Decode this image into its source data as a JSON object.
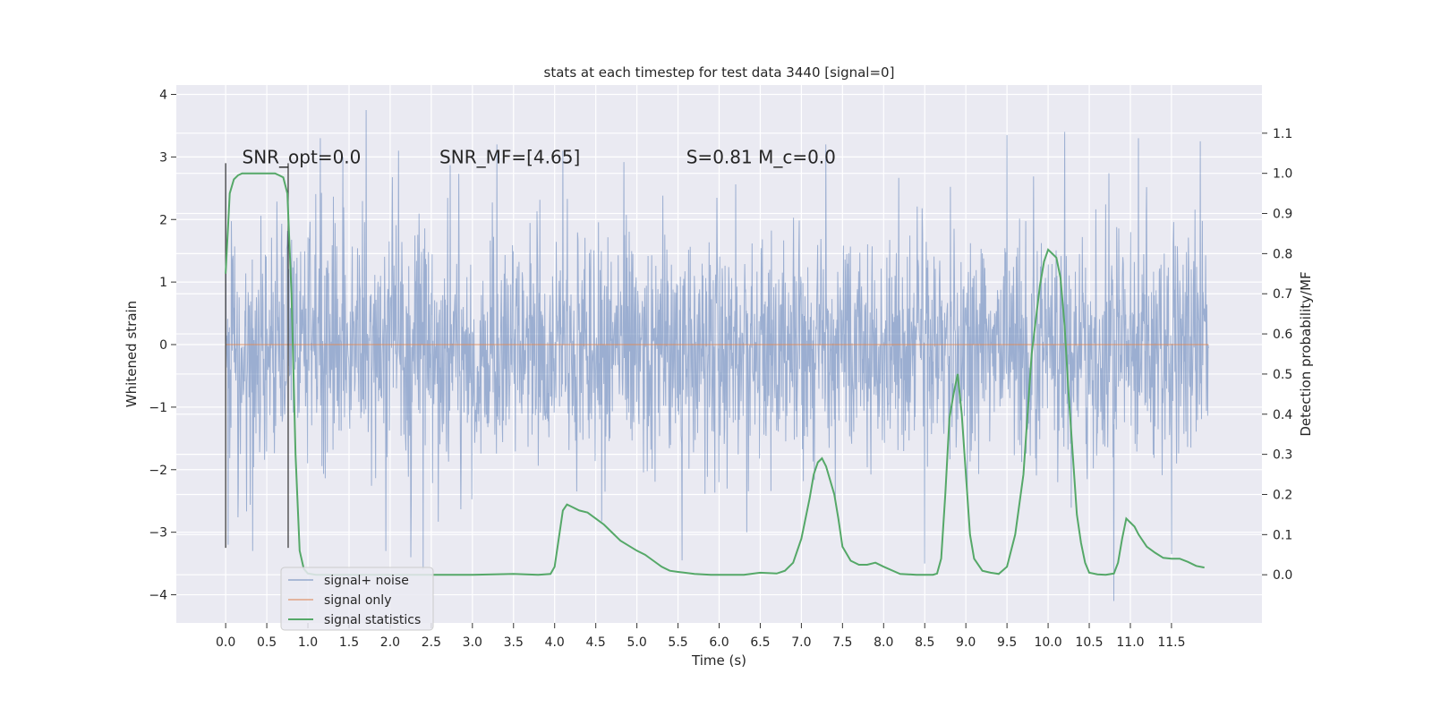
{
  "chart_data": {
    "type": "line",
    "title": "stats at each timestep for test data 3440 [signal=0]",
    "xlabel": "Time (s)",
    "ylabel": "Whitened strain",
    "y2label": "Detection probability/MF",
    "xlim": [
      -0.6,
      12.6
    ],
    "ylim": [
      -4.45,
      4.15
    ],
    "y2lim": [
      -0.12,
      1.22
    ],
    "grid": true,
    "legend_position": "lower left",
    "x_ticks": [
      "0.0",
      "0.5",
      "1.0",
      "1.5",
      "2.0",
      "2.5",
      "3.0",
      "3.5",
      "4.0",
      "4.5",
      "5.0",
      "5.5",
      "6.0",
      "6.5",
      "7.0",
      "7.5",
      "8.0",
      "8.5",
      "9.0",
      "9.5",
      "10.0",
      "10.5",
      "11.0",
      "11.5"
    ],
    "x_tick_values": [
      0,
      0.5,
      1,
      1.5,
      2,
      2.5,
      3,
      3.5,
      4,
      4.5,
      5,
      5.5,
      6,
      6.5,
      7,
      7.5,
      8,
      8.5,
      9,
      9.5,
      10,
      10.5,
      11,
      11.5
    ],
    "y_ticks": [
      "−4",
      "−3",
      "−2",
      "−1",
      "0",
      "1",
      "2",
      "3",
      "4"
    ],
    "y_tick_values": [
      -4,
      -3,
      -2,
      -1,
      0,
      1,
      2,
      3,
      4
    ],
    "y2_ticks": [
      "0.0",
      "0.1",
      "0.2",
      "0.3",
      "0.4",
      "0.5",
      "0.6",
      "0.7",
      "0.8",
      "0.9",
      "1.0",
      "1.1"
    ],
    "y2_tick_values": [
      0,
      0.1,
      0.2,
      0.3,
      0.4,
      0.5,
      0.6,
      0.7,
      0.8,
      0.9,
      1.0,
      1.1
    ],
    "annotations": [
      {
        "text": "SNR_opt=0.0",
        "x": 0.2,
        "y": 3.0
      },
      {
        "text": "SNR_MF=[4.65]",
        "x": 2.6,
        "y": 3.0
      },
      {
        "text": "S=0.81   M_c=0.0",
        "x": 5.6,
        "y": 3.0
      }
    ],
    "markers": [
      {
        "name": "window-start",
        "x": 0.0,
        "ymin": -3.25,
        "ymax": 2.9
      },
      {
        "name": "window-end",
        "x": 0.76,
        "ymin": -3.25,
        "ymax": 2.9
      }
    ],
    "series": [
      {
        "name": "signal+ noise",
        "color": "#4c72b0",
        "x_range": [
          0,
          11.95
        ],
        "typical_amplitude": 1.7,
        "peak_samples": [
          {
            "x": 0.0,
            "y": 2.9
          },
          {
            "x": 0.03,
            "y": -3.2
          },
          {
            "x": 0.33,
            "y": -3.3
          },
          {
            "x": 1.15,
            "y": 3.3
          },
          {
            "x": 1.71,
            "y": 3.75
          },
          {
            "x": 1.95,
            "y": -3.3
          },
          {
            "x": 2.1,
            "y": 3.1
          },
          {
            "x": 2.25,
            "y": -3.4
          },
          {
            "x": 2.4,
            "y": -3.6
          },
          {
            "x": 3.3,
            "y": 3.2
          },
          {
            "x": 4.1,
            "y": 3.1
          },
          {
            "x": 5.55,
            "y": -3.45
          },
          {
            "x": 7.3,
            "y": 3.2
          },
          {
            "x": 8.5,
            "y": -3.5
          },
          {
            "x": 9.5,
            "y": 3.35
          },
          {
            "x": 10.2,
            "y": 3.4
          },
          {
            "x": 10.8,
            "y": -4.1
          },
          {
            "x": 11.1,
            "y": 3.3
          },
          {
            "x": 11.5,
            "y": -3.35
          },
          {
            "x": 11.85,
            "y": 3.25
          }
        ]
      },
      {
        "name": "signal only",
        "color": "#dd8452",
        "x": [
          0,
          11.95
        ],
        "y": [
          0,
          0
        ]
      },
      {
        "name": "signal statistics",
        "color": "#55a868",
        "axis": "right",
        "x": [
          0,
          0.05,
          0.1,
          0.15,
          0.2,
          0.3,
          0.4,
          0.5,
          0.6,
          0.65,
          0.7,
          0.75,
          0.8,
          0.85,
          0.9,
          0.95,
          1.0,
          1.1,
          1.3,
          1.5,
          2.0,
          2.5,
          3.0,
          3.5,
          3.8,
          3.95,
          4.0,
          4.05,
          4.1,
          4.15,
          4.2,
          4.3,
          4.4,
          4.5,
          4.6,
          4.7,
          4.8,
          5.0,
          5.1,
          5.2,
          5.3,
          5.4,
          5.5,
          5.7,
          5.9,
          6.1,
          6.3,
          6.5,
          6.7,
          6.8,
          6.9,
          7.0,
          7.1,
          7.15,
          7.2,
          7.25,
          7.3,
          7.4,
          7.45,
          7.5,
          7.6,
          7.7,
          7.8,
          7.9,
          8.0,
          8.2,
          8.4,
          8.6,
          8.65,
          8.7,
          8.75,
          8.8,
          8.85,
          8.9,
          8.95,
          9.0,
          9.05,
          9.1,
          9.2,
          9.3,
          9.4,
          9.5,
          9.6,
          9.7,
          9.8,
          9.9,
          9.95,
          10.0,
          10.05,
          10.1,
          10.15,
          10.2,
          10.25,
          10.3,
          10.35,
          10.4,
          10.45,
          10.5,
          10.6,
          10.7,
          10.8,
          10.85,
          10.9,
          10.95,
          11.0,
          11.05,
          11.1,
          11.2,
          11.3,
          11.4,
          11.5,
          11.6,
          11.7,
          11.8,
          11.9
        ],
        "y": [
          0.75,
          0.95,
          0.985,
          0.995,
          1.0,
          1.0,
          1.0,
          1.0,
          1.0,
          0.995,
          0.99,
          0.95,
          0.7,
          0.3,
          0.06,
          0.015,
          0.003,
          0.0,
          0.0,
          0.0,
          0.0,
          0.0,
          0.0,
          0.002,
          0.0,
          0.002,
          0.02,
          0.09,
          0.16,
          0.175,
          0.17,
          0.16,
          0.155,
          0.14,
          0.125,
          0.105,
          0.085,
          0.06,
          0.05,
          0.035,
          0.02,
          0.01,
          0.007,
          0.002,
          0.0,
          0.0,
          0.0,
          0.005,
          0.003,
          0.01,
          0.03,
          0.09,
          0.19,
          0.25,
          0.28,
          0.29,
          0.27,
          0.2,
          0.14,
          0.07,
          0.035,
          0.025,
          0.025,
          0.03,
          0.02,
          0.002,
          0.0,
          0.0,
          0.003,
          0.04,
          0.2,
          0.39,
          0.45,
          0.5,
          0.4,
          0.25,
          0.1,
          0.04,
          0.01,
          0.005,
          0.002,
          0.02,
          0.1,
          0.25,
          0.55,
          0.72,
          0.78,
          0.81,
          0.8,
          0.79,
          0.74,
          0.62,
          0.45,
          0.3,
          0.15,
          0.08,
          0.03,
          0.005,
          0.001,
          0.0,
          0.003,
          0.03,
          0.09,
          0.14,
          0.13,
          0.12,
          0.1,
          0.07,
          0.055,
          0.042,
          0.04,
          0.04,
          0.032,
          0.022,
          0.018
        ]
      }
    ]
  }
}
